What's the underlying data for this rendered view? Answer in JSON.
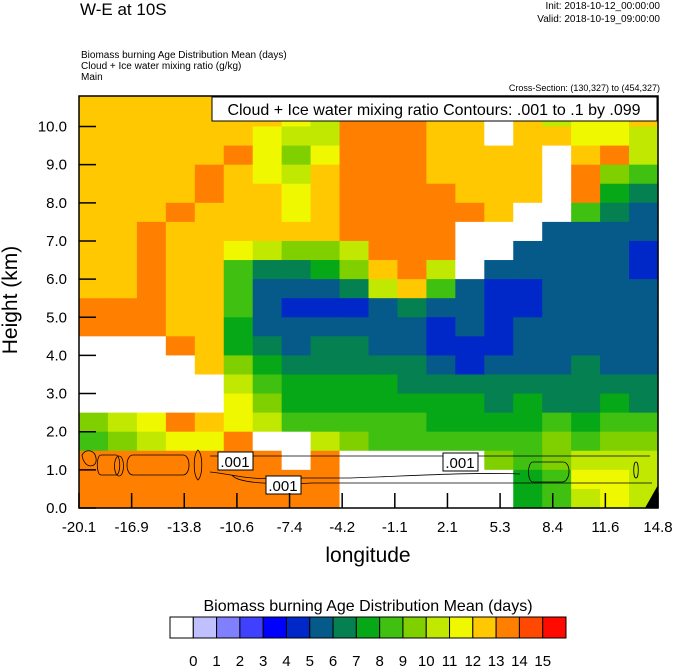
{
  "header": {
    "title": "W-E at 10S",
    "init": "Init: 2018-10-12_00:00:00",
    "valid": "Valid: 2018-10-19_09:00:00",
    "fields": [
      "Biomass burning Age Distribution Mean   (days)",
      "Cloud + Ice water mixing ratio   (g/kg)",
      "Main"
    ],
    "cross_section": "Cross-Section: (130,327) to (454,327)"
  },
  "chart_data": {
    "type": "heatmap",
    "title": "Cloud + Ice water mixing ratio Contours: .001 to .1 by .099",
    "xlabel": "longitude",
    "ylabel": "Height (km)",
    "xlim": [
      -20.1,
      14.8
    ],
    "ylim": [
      0,
      10.8
    ],
    "xticks": [
      "-20.1",
      "-16.9",
      "-13.8",
      "-10.6",
      "-7.4",
      "-4.2",
      "-1.1",
      "2.1",
      "5.3",
      "8.4",
      "11.6",
      "14.8"
    ],
    "yticks": [
      "0.0",
      "1.0",
      "2.0",
      "3.0",
      "4.0",
      "5.0",
      "6.0",
      "7.0",
      "8.0",
      "9.0",
      "10.0"
    ],
    "z_days": [
      [
        12.5,
        12.5,
        12.5,
        12.5,
        12.5,
        12.5,
        10.5,
        13.5,
        13.5,
        13.5,
        13.5,
        12.5,
        12.5,
        12.5,
        -1,
        12.5,
        10.5,
        11.5,
        12.5,
        10.5
      ],
      [
        12.5,
        12.5,
        12.5,
        12.5,
        12.5,
        12.5,
        12.5,
        11.5,
        10.5,
        13.5,
        13.5,
        13.5,
        12.5,
        12.5,
        -1,
        12.5,
        10.5,
        11.5,
        11.5,
        12.5
      ],
      [
        12.5,
        12.5,
        12.5,
        12.5,
        12.5,
        12.5,
        11.5,
        10.5,
        10.5,
        13.5,
        13.5,
        13.5,
        12.5,
        12.5,
        -1,
        12.5,
        12.5,
        11.5,
        11.5,
        10.5
      ],
      [
        12.5,
        12.5,
        12.5,
        12.5,
        12.5,
        13.5,
        11.5,
        9.5,
        11.5,
        13.5,
        13.5,
        13.5,
        12.5,
        12.5,
        12.5,
        12.5,
        -1,
        12.5,
        13.5,
        10.5
      ],
      [
        12.5,
        12.5,
        12.5,
        12.5,
        13.5,
        12.5,
        11.5,
        10.5,
        12.5,
        13.5,
        13.5,
        13.5,
        12.5,
        12.5,
        12.5,
        12.5,
        -1,
        13.5,
        9.5,
        8.5
      ],
      [
        12.5,
        12.5,
        12.5,
        12.5,
        13.5,
        12.5,
        12.5,
        11.5,
        12.5,
        13.5,
        13.5,
        13.5,
        13.5,
        12.5,
        12.5,
        12.5,
        -1,
        13.5,
        7.5,
        6.5
      ],
      [
        12.5,
        12.5,
        12.5,
        13.5,
        12.5,
        12.5,
        12.5,
        11.5,
        12.5,
        13.5,
        13.5,
        13.5,
        13.5,
        13.5,
        12.5,
        -1,
        -1,
        8.5,
        6.5,
        5.5
      ],
      [
        12.5,
        12.5,
        13.5,
        12.5,
        12.5,
        12.5,
        12.5,
        12.5,
        12.5,
        13.5,
        13.5,
        13.5,
        13.5,
        -1,
        -1,
        -1,
        5.5,
        5.5,
        5.5,
        5.5
      ],
      [
        12.5,
        12.5,
        13.5,
        12.5,
        12.5,
        11.5,
        10.5,
        9.5,
        9.5,
        10.5,
        13.5,
        13.5,
        13.5,
        -1,
        -1,
        5.5,
        5.5,
        5.5,
        5.5,
        4.5
      ],
      [
        12.5,
        12.5,
        13.5,
        12.5,
        12.5,
        8.5,
        6.5,
        6.5,
        7.5,
        9.5,
        12.5,
        13.5,
        10.5,
        -1,
        5.5,
        5.5,
        5.5,
        5.5,
        5.5,
        4.5
      ],
      [
        12.5,
        12.5,
        13.5,
        12.5,
        12.5,
        8.5,
        5.5,
        5.5,
        5.5,
        6.5,
        10.5,
        12.5,
        8.5,
        5.5,
        4.5,
        4.5,
        5.5,
        5.5,
        5.5,
        5.5
      ],
      [
        13.5,
        13.5,
        13.5,
        12.5,
        12.5,
        8.5,
        5.5,
        4.5,
        4.5,
        4.5,
        5.5,
        6.5,
        5.5,
        5.5,
        4.5,
        4.5,
        5.5,
        5.5,
        5.5,
        5.5
      ],
      [
        13.5,
        13.5,
        13.5,
        12.5,
        12.5,
        7.5,
        5.5,
        5.5,
        5.5,
        5.5,
        5.5,
        5.5,
        4.5,
        5.5,
        4.5,
        5.5,
        5.5,
        5.5,
        5.5,
        5.5
      ],
      [
        -1,
        -1,
        -1,
        13.5,
        12.5,
        7.5,
        6.5,
        5.5,
        6.5,
        6.5,
        5.5,
        5.5,
        4.5,
        4.5,
        4.5,
        5.5,
        5.5,
        5.5,
        5.5,
        5.5
      ],
      [
        -1,
        -1,
        -1,
        -1,
        12.5,
        9.5,
        7.5,
        6.5,
        6.5,
        6.5,
        6.5,
        6.5,
        5.5,
        4.5,
        5.5,
        5.5,
        5.5,
        6.5,
        5.5,
        5.5
      ],
      [
        -1,
        -1,
        -1,
        -1,
        -1,
        10.5,
        8.5,
        7.5,
        7.5,
        7.5,
        7.5,
        6.5,
        6.5,
        6.5,
        6.5,
        6.5,
        6.5,
        6.5,
        6.5,
        6.5
      ],
      [
        -1,
        -1,
        -1,
        -1,
        -1,
        11.5,
        9.5,
        7.5,
        7.5,
        7.5,
        7.5,
        7.5,
        7.5,
        7.5,
        6.5,
        7.5,
        6.5,
        6.5,
        7.5,
        6.5
      ],
      [
        9.5,
        10.5,
        11.5,
        13.5,
        12.5,
        11.5,
        10.5,
        8.5,
        8.5,
        8.5,
        8.5,
        8.5,
        7.5,
        7.5,
        7.5,
        7.5,
        8.5,
        7.5,
        8.5,
        8.5
      ],
      [
        8.5,
        9.5,
        10.5,
        11.5,
        11.5,
        13.5,
        -1,
        -1,
        10.5,
        9.5,
        8.5,
        8.5,
        8.5,
        8.5,
        8.5,
        8.5,
        9.5,
        8.5,
        9.5,
        9.5
      ],
      [
        13.5,
        13.5,
        13.5,
        13.5,
        13.5,
        13.5,
        13.5,
        -1,
        13.5,
        -1,
        -1,
        -1,
        -1,
        -1,
        9.5,
        8.5,
        9.5,
        10.5,
        10.5,
        10.5
      ],
      [
        13.5,
        13.5,
        13.5,
        13.5,
        13.5,
        13.5,
        13.5,
        13.5,
        13.5,
        -1,
        -1,
        -1,
        -1,
        -1,
        -1,
        7.5,
        8.5,
        11.5,
        11.5,
        10.5
      ],
      [
        13.5,
        13.5,
        13.5,
        13.5,
        13.5,
        13.5,
        13.5,
        13.5,
        13.5,
        -1,
        -1,
        -1,
        -1,
        -1,
        -1,
        7.5,
        8.5,
        10.5,
        11.5,
        10.5
      ]
    ],
    "contour_labels": [
      ".001",
      ".001",
      ".001"
    ],
    "colorbar": {
      "title": "Biomass burning Age Distribution Mean  (days)",
      "labels": [
        "0",
        "1",
        "2",
        "3",
        "4",
        "5",
        "6",
        "7",
        "8",
        "9",
        "10",
        "11",
        "12",
        "13",
        "14",
        "15"
      ],
      "colors": [
        "#ffffff",
        "#c0c0ff",
        "#8080ff",
        "#4040ff",
        "#0000ff",
        "#0028c8",
        "#055a8a",
        "#058050",
        "#06a818",
        "#40c010",
        "#80d000",
        "#c0e800",
        "#f0f800",
        "#ffc800",
        "#ff8000",
        "#ff4800",
        "#ff0a00"
      ]
    }
  }
}
